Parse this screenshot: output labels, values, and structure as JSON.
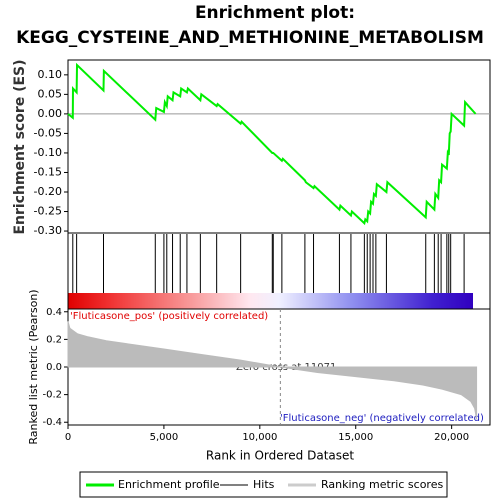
{
  "chart_data": {
    "type": "gsea",
    "title": "Enrichment plot:",
    "subtitle": "KEGG_CYSTEINE_AND_METHIONINE_METABOLISM",
    "ylabel": "Enrichment score (ES)",
    "xlabel": "Rank in Ordered Dataset",
    "xlim": [
      0,
      22000
    ],
    "xticks": [
      0,
      {
        "value": 5000,
        "label": "5,000"
      },
      {
        "value": 10000,
        "label": "10,000"
      },
      {
        "value": 15000,
        "label": "15,000"
      },
      {
        "value": 20000,
        "label": "20,000"
      }
    ],
    "ylim": [
      -0.305,
      0.138
    ],
    "yticks": [
      {
        "value": 0.1,
        "label": "0.10"
      },
      {
        "value": 0.05,
        "label": "0.05"
      },
      {
        "value": 0,
        "label": "0.00"
      },
      {
        "value": -0.05,
        "label": "-0.05"
      },
      {
        "value": -0.1,
        "label": "-0.10"
      },
      {
        "value": -0.15,
        "label": "-0.15"
      },
      {
        "value": -0.2,
        "label": "-0.20"
      },
      {
        "value": -0.25,
        "label": "-0.25"
      },
      {
        "value": -0.3,
        "label": "-0.30"
      }
    ],
    "series": [
      {
        "name": "Enrichment profile",
        "color": "#00ee00",
        "x": [
          0,
          250,
          260,
          450,
          470,
          1850,
          1870,
          4550,
          4600,
          5000,
          5050,
          5150,
          5200,
          5450,
          5500,
          5850,
          5900,
          6200,
          6250,
          6900,
          6950,
          7750,
          7800,
          9000,
          9050,
          10650,
          10700,
          11150,
          11200,
          12350,
          12400,
          12800,
          12850,
          14150,
          14200,
          14750,
          14800,
          15450,
          15500,
          15600,
          15650,
          15750,
          15800,
          15900,
          15950,
          16050,
          16100,
          16600,
          16650,
          18650,
          18700,
          19100,
          19150,
          19300,
          19350,
          19450,
          19500,
          19750,
          19800,
          19850,
          19900,
          19950,
          20000,
          20650,
          20700,
          21250
        ],
        "values": [
          0,
          -0.01,
          0.065,
          0.055,
          0.125,
          0.06,
          0.11,
          -0.015,
          0.015,
          0.005,
          0.03,
          0.02,
          0.045,
          0.035,
          0.055,
          0.045,
          0.065,
          0.055,
          0.065,
          0.035,
          0.05,
          0.02,
          0.025,
          -0.025,
          -0.02,
          -0.1,
          -0.1,
          -0.12,
          -0.115,
          -0.17,
          -0.175,
          -0.19,
          -0.185,
          -0.245,
          -0.235,
          -0.26,
          -0.25,
          -0.28,
          -0.27,
          -0.275,
          -0.25,
          -0.255,
          -0.225,
          -0.23,
          -0.205,
          -0.21,
          -0.18,
          -0.2,
          -0.175,
          -0.265,
          -0.225,
          -0.245,
          -0.205,
          -0.215,
          -0.17,
          -0.175,
          -0.13,
          -0.14,
          -0.1,
          -0.105,
          -0.05,
          -0.045,
          0,
          -0.03,
          0.03,
          0
        ]
      }
    ],
    "hits": {
      "name": "Hits",
      "color": "#000000",
      "x": [
        250,
        450,
        1850,
        4550,
        5000,
        5150,
        5450,
        5850,
        6200,
        6900,
        7750,
        9000,
        10650,
        10700,
        11150,
        12350,
        12800,
        14150,
        14750,
        15450,
        15600,
        15750,
        15900,
        16050,
        16600,
        18650,
        19100,
        19300,
        19450,
        19750,
        19850,
        19950,
        20650
      ]
    },
    "metric": {
      "name": "Ranking metric scores",
      "color": "#bbbbbb",
      "ylabel": "Ranked list metric (Pearson)",
      "ylim": [
        -0.42,
        0.42
      ],
      "yticks": [
        0.4,
        0.2,
        {
          "value": 0,
          "label": "0.0"
        },
        -0.2,
        -0.4
      ],
      "x": [
        0,
        100,
        500,
        1000,
        2000,
        3000,
        5000,
        7000,
        9000,
        11071,
        13000,
        15000,
        17000,
        18500,
        19500,
        20500,
        21000,
        21200,
        21300
      ],
      "values": [
        0.33,
        0.28,
        0.24,
        0.22,
        0.19,
        0.17,
        0.13,
        0.09,
        0.05,
        0,
        -0.04,
        -0.07,
        -0.1,
        -0.13,
        -0.16,
        -0.2,
        -0.25,
        -0.3,
        -0.38
      ]
    },
    "zero_cross": 11071,
    "annotations": [
      "'Fluticasone_pos' (positively correlated)",
      "Zero cross at 11071",
      "'Fluticasone_neg' (negatively correlated)"
    ]
  }
}
